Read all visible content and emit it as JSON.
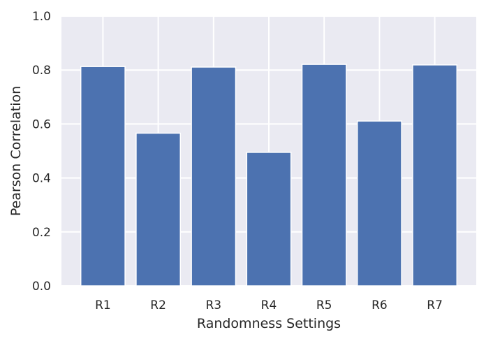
{
  "chart_data": {
    "type": "bar",
    "title": "",
    "xlabel": "Randomness Settings",
    "ylabel": "Pearson Correlation",
    "categories": [
      "R1",
      "R2",
      "R3",
      "R4",
      "R5",
      "R6",
      "R7"
    ],
    "values": [
      0.813,
      0.566,
      0.811,
      0.495,
      0.821,
      0.611,
      0.819
    ],
    "ylim": [
      0.0,
      1.0
    ],
    "yticks": [
      "0.0",
      "0.2",
      "0.4",
      "0.6",
      "0.8",
      "1.0"
    ],
    "grid": true,
    "colors": {
      "bar": "#4c72b0",
      "plot_background": "#eaeaf2",
      "grid": "#ffffff"
    }
  }
}
